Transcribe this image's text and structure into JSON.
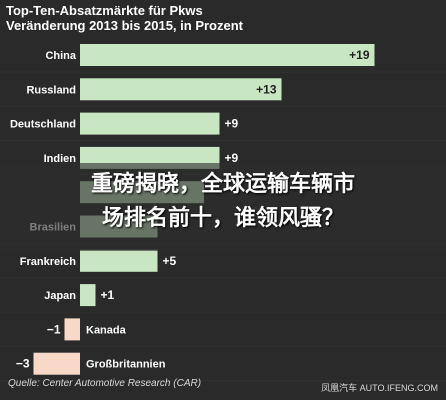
{
  "header": {
    "title": "Top-Ten-Absatzmärkte für Pkws",
    "subtitle": "Veränderung 2013 bis 2015, in Prozent"
  },
  "chart_data": {
    "type": "bar",
    "orientation": "horizontal",
    "title": "Top-Ten-Absatzmärkte für Pkws",
    "subtitle": "Veränderung 2013 bis 2015, in Prozent",
    "categories": [
      "China",
      "Russland",
      "Deutschland",
      "Indien",
      "",
      "Brasilien",
      "Frankreich",
      "Japan",
      "Kanada",
      "Großbritannien"
    ],
    "values": [
      19,
      13,
      9,
      9,
      8,
      5,
      5,
      1,
      -1,
      -3
    ],
    "value_labels": [
      "+19",
      "+13",
      "+9",
      "+9",
      "",
      "",
      "+5",
      "+1",
      "−1",
      "−3"
    ],
    "positive_color": "#c8e6c2",
    "negative_color": "#f8d9c8",
    "grid": false,
    "legend": "none"
  },
  "overlay": {
    "line1": "重磅揭晓，全球运输车辆市",
    "line2": "场排名前十，谁领风骚？"
  },
  "footer": {
    "source": "Quelle: Center Automotive Research (CAR)",
    "watermark": "凤凰汽车 AUTO.IFENG.COM"
  }
}
